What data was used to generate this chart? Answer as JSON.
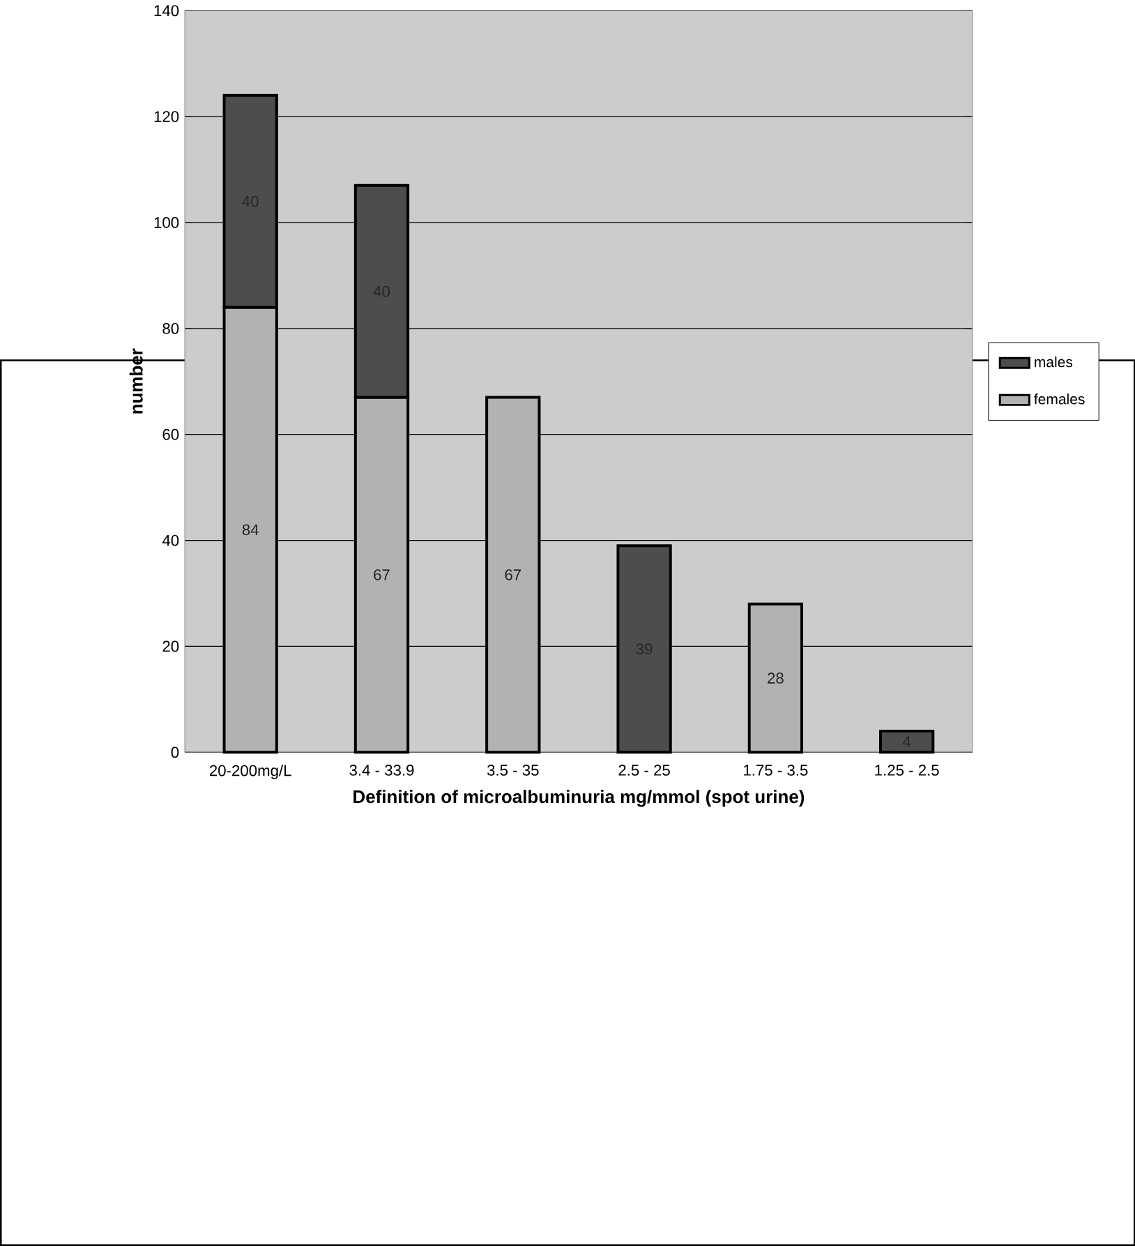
{
  "chart_data": {
    "type": "bar",
    "stacked": true,
    "xlabel": "Definition of microalbuminuria mg/mmol (spot urine)",
    "ylabel": "number",
    "categories": [
      "20-200mg/L",
      "3.4 - 33.9",
      "3.5 - 35",
      "2.5 - 25",
      "1.75 - 3.5",
      "1.25 - 2.5"
    ],
    "series": [
      {
        "name": "females",
        "color": "#b2b2b2",
        "values": [
          84,
          67,
          67,
          null,
          28,
          null
        ]
      },
      {
        "name": "males",
        "color": "#4d4d4d",
        "values": [
          40,
          40,
          null,
          39,
          null,
          4
        ]
      }
    ],
    "ylim": [
      0,
      140
    ],
    "yticks": [
      0,
      20,
      40,
      60,
      80,
      100,
      120,
      140
    ],
    "grid": "y",
    "legend": "right",
    "data_labels": true
  }
}
